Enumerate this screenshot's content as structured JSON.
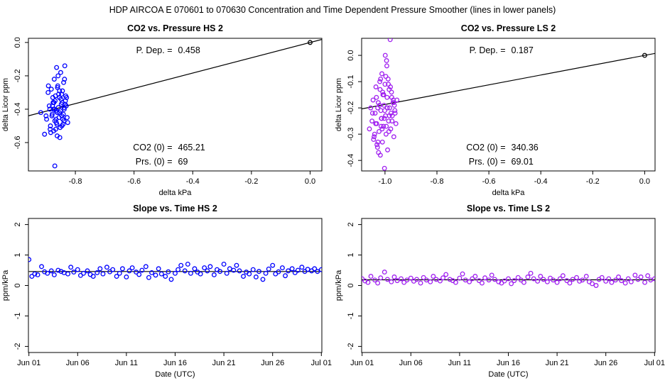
{
  "suptitle": "HDP   AIRCOA E   070601 to 070630   Concentration and Time Dependent Pressure Smoother (lines in lower panels)",
  "colors": {
    "hs": "#0000ff",
    "ls": "#a020f0",
    "line": "#000000"
  },
  "chart_data": [
    {
      "id": "co2-pressure-hs",
      "type": "scatter",
      "title": "CO2 vs. Pressure HS 2",
      "xlabel": "delta kPa",
      "ylabel": "delta Licor ppm",
      "xlim": [
        -0.96,
        0.04
      ],
      "ylim": [
        -0.77,
        0.025
      ],
      "xticks": [
        -0.8,
        -0.6,
        -0.4,
        -0.2,
        0.0
      ],
      "xtick_labels": [
        "-0.8",
        "-0.6",
        "-0.4",
        "-0.2",
        "0.0"
      ],
      "yticks": [
        0.0,
        -0.2,
        -0.4,
        -0.6
      ],
      "ytick_labels": [
        "0.0",
        "-0.2",
        "-0.4",
        "-0.6"
      ],
      "fit_slope": 0.458,
      "annotations": {
        "p_dep_label": "P. Dep. =",
        "p_dep_value": "0.458",
        "co2_label": "CO2 (0) =",
        "co2_value": "465.21",
        "prs_label": "Prs. (0) =",
        "prs_value": "69"
      },
      "series_color_key": "hs",
      "zero_point": [
        0,
        0
      ],
      "x": [
        -0.918,
        -0.905,
        -0.898,
        -0.893,
        -0.889,
        -0.885,
        -0.882,
        -0.879,
        -0.876,
        -0.874,
        -0.872,
        -0.87,
        -0.868,
        -0.866,
        -0.864,
        -0.862,
        -0.86,
        -0.858,
        -0.856,
        -0.854,
        -0.852,
        -0.85,
        -0.848,
        -0.846,
        -0.844,
        -0.842,
        -0.84,
        -0.838,
        -0.836,
        -0.834,
        -0.892,
        -0.884,
        -0.877,
        -0.871,
        -0.865,
        -0.859,
        -0.853,
        -0.847,
        -0.841,
        -0.835,
        -0.88,
        -0.873,
        -0.867,
        -0.861,
        -0.855,
        -0.849,
        -0.843,
        -0.837,
        -0.831,
        -0.826,
        -0.9,
        -0.887,
        -0.869,
        -0.863,
        -0.857,
        -0.851,
        -0.845,
        -0.839,
        -0.833,
        -0.828,
        -0.886,
        -0.878,
        -0.87,
        -0.862,
        -0.854,
        -0.846,
        -0.838,
        -0.83,
        -0.875,
        -0.866
      ],
      "y": [
        -0.42,
        -0.55,
        -0.46,
        -0.3,
        -0.38,
        -0.5,
        -0.28,
        -0.43,
        -0.36,
        -0.53,
        -0.22,
        -0.47,
        -0.32,
        -0.41,
        -0.15,
        -0.56,
        -0.26,
        -0.39,
        -0.45,
        -0.33,
        -0.51,
        -0.18,
        -0.37,
        -0.44,
        -0.29,
        -0.49,
        -0.24,
        -0.4,
        -0.14,
        -0.35,
        -0.26,
        -0.54,
        -0.33,
        -0.4,
        -0.48,
        -0.2,
        -0.57,
        -0.31,
        -0.43,
        -0.37,
        -0.44,
        -0.36,
        -0.52,
        -0.27,
        -0.42,
        -0.34,
        -0.46,
        -0.22,
        -0.38,
        -0.48,
        -0.44,
        -0.4,
        -0.35,
        -0.49,
        -0.31,
        -0.41,
        -0.36,
        -0.47,
        -0.32,
        -0.45,
        -0.52,
        -0.38,
        -0.74,
        -0.42,
        -0.29,
        -0.5,
        -0.39,
        -0.33,
        -0.4,
        -0.46
      ]
    },
    {
      "id": "co2-pressure-ls",
      "type": "scatter",
      "title": "CO2 vs. Pressure LS 2",
      "xlabel": "delta kPa",
      "ylabel": "delta Licor ppm",
      "xlim": [
        -1.09,
        0.04
      ],
      "ylim": [
        -0.44,
        0.065
      ],
      "xticks": [
        -1.0,
        -0.8,
        -0.6,
        -0.4,
        -0.2,
        0.0
      ],
      "xtick_labels": [
        "-1.0",
        "-0.8",
        "-0.6",
        "-0.4",
        "-0.2",
        "0.0"
      ],
      "yticks": [
        0.0,
        -0.1,
        -0.2,
        -0.3,
        -0.4
      ],
      "ytick_labels": [
        "0.0",
        "-0.1",
        "-0.2",
        "-0.3",
        "-0.4"
      ],
      "fit_slope": 0.187,
      "annotations": {
        "p_dep_label": "P. Dep. =",
        "p_dep_value": "0.187",
        "co2_label": "CO2 (0) =",
        "co2_value": "340.36",
        "prs_label": "Prs. (0) =",
        "prs_value": "69.01"
      },
      "series_color_key": "ls",
      "zero_point": [
        0,
        0
      ],
      "x": [
        -1.06,
        -1.055,
        -1.05,
        -1.046,
        -1.042,
        -1.038,
        -1.035,
        -1.032,
        -1.029,
        -1.026,
        -1.023,
        -1.02,
        -1.018,
        -1.016,
        -1.014,
        -1.012,
        -1.01,
        -1.008,
        -1.006,
        -1.004,
        -1.002,
        -1.0,
        -0.998,
        -0.996,
        -0.994,
        -0.992,
        -0.99,
        -0.988,
        -0.986,
        -0.984,
        -0.982,
        -0.98,
        -0.978,
        -0.975,
        -0.972,
        -0.969,
        -0.966,
        -0.962,
        -0.958,
        -0.954,
        -1.048,
        -1.04,
        -1.033,
        -1.027,
        -1.021,
        -1.015,
        -1.009,
        -1.003,
        -0.997,
        -0.991,
        -0.985,
        -0.979,
        -0.973,
        -0.967,
        -0.961,
        -1.044,
        -1.036,
        -1.028,
        -1.019,
        -1.011,
        -1.001,
        -0.993,
        -0.983,
        -0.974,
        -0.964,
        -1.025,
        -1.013,
        -1.005,
        -0.995,
        -0.987,
        -0.977,
        -0.968,
        -1.031,
        -1.017,
        -0.999
      ],
      "y": [
        -0.28,
        -0.2,
        -0.25,
        -0.17,
        -0.31,
        -0.22,
        -0.12,
        -0.26,
        -0.35,
        -0.18,
        -0.29,
        -0.1,
        -0.38,
        -0.21,
        -0.24,
        -0.07,
        -0.33,
        -0.15,
        -0.27,
        -0.19,
        -0.43,
        -0.11,
        -0.23,
        -0.3,
        -0.02,
        -0.16,
        -0.36,
        -0.09,
        -0.25,
        -0.13,
        -0.2,
        0.06,
        -0.28,
        -0.14,
        -0.23,
        -0.18,
        -0.31,
        -0.21,
        -0.26,
        -0.17,
        -0.22,
        -0.3,
        -0.16,
        -0.33,
        -0.19,
        -0.27,
        -0.14,
        -0.24,
        -0.08,
        -0.2,
        -0.29,
        -0.12,
        -0.25,
        -0.18,
        -0.22,
        -0.32,
        -0.26,
        -0.2,
        -0.13,
        -0.28,
        -0.21,
        -0.04,
        -0.23,
        -0.16,
        -0.19,
        -0.37,
        -0.24,
        -0.15,
        -0.27,
        -0.11,
        -0.22,
        -0.17,
        -0.34,
        -0.09,
        0.0
      ]
    },
    {
      "id": "slope-time-hs",
      "type": "line",
      "title": "Slope vs. Time HS 2",
      "xlabel": "Date (UTC)",
      "ylabel": "ppm/kPa",
      "xlim": [
        -0.05,
        30.05
      ],
      "ylim": [
        -2.2,
        2.2
      ],
      "xticks": [
        0,
        5,
        10,
        15,
        20,
        25,
        30
      ],
      "xtick_labels": [
        "Jun 01",
        "Jun 06",
        "Jun 11",
        "Jun 16",
        "Jun 21",
        "Jun 26",
        "Jul 01"
      ],
      "yticks": [
        -2,
        -1,
        0,
        1,
        2
      ],
      "ytick_labels": [
        "-2",
        "-1",
        "0",
        "1",
        "2"
      ],
      "fit_level": 0.458,
      "series_color_key": "hs",
      "x": [
        0,
        0.3,
        0.6,
        0.9,
        1.3,
        1.6,
        1.9,
        2.3,
        2.6,
        3.0,
        3.3,
        3.6,
        4.0,
        4.3,
        4.6,
        5.0,
        5.3,
        5.6,
        6.0,
        6.3,
        6.6,
        7.0,
        7.3,
        7.6,
        8.0,
        8.3,
        8.6,
        9.0,
        9.3,
        9.6,
        10.0,
        10.3,
        10.6,
        11.0,
        11.3,
        11.6,
        12.0,
        12.3,
        12.6,
        13.0,
        13.3,
        13.6,
        14.0,
        14.3,
        14.6,
        15.0,
        15.3,
        15.6,
        16.0,
        16.3,
        16.6,
        17.0,
        17.3,
        17.6,
        18.0,
        18.3,
        18.6,
        19.0,
        19.3,
        19.6,
        20.0,
        20.3,
        20.6,
        21.0,
        21.3,
        21.6,
        22.0,
        22.3,
        22.6,
        23.0,
        23.3,
        23.6,
        24.0,
        24.3,
        24.6,
        25.0,
        25.3,
        25.6,
        26.0,
        26.3,
        26.6,
        27.0,
        27.3,
        27.6,
        28.0,
        28.3,
        28.6,
        29.0,
        29.3,
        29.6,
        30.0
      ],
      "y": [
        0.85,
        0.3,
        0.38,
        0.35,
        0.62,
        0.45,
        0.4,
        0.48,
        0.35,
        0.5,
        0.46,
        0.42,
        0.38,
        0.6,
        0.44,
        0.52,
        0.33,
        0.4,
        0.48,
        0.36,
        0.3,
        0.42,
        0.55,
        0.38,
        0.6,
        0.45,
        0.52,
        0.3,
        0.4,
        0.55,
        0.28,
        0.48,
        0.58,
        0.44,
        0.36,
        0.5,
        0.62,
        0.26,
        0.42,
        0.34,
        0.55,
        0.38,
        0.3,
        0.45,
        0.2,
        0.4,
        0.52,
        0.66,
        0.48,
        0.7,
        0.4,
        0.55,
        0.44,
        0.38,
        0.58,
        0.48,
        0.62,
        0.35,
        0.52,
        0.46,
        0.7,
        0.4,
        0.55,
        0.5,
        0.66,
        0.48,
        0.3,
        0.44,
        0.38,
        0.52,
        0.28,
        0.46,
        0.2,
        0.4,
        0.54,
        0.66,
        0.38,
        0.45,
        0.58,
        0.32,
        0.48,
        0.55,
        0.42,
        0.5,
        0.6,
        0.46,
        0.53,
        0.48,
        0.55,
        0.46,
        0.52
      ]
    },
    {
      "id": "slope-time-ls",
      "type": "line",
      "title": "Slope vs. Time LS 2",
      "xlabel": "Date (UTC)",
      "ylabel": "ppm/kPa",
      "xlim": [
        -0.05,
        30.05
      ],
      "ylim": [
        -2.2,
        2.2
      ],
      "xticks": [
        0,
        5,
        10,
        15,
        20,
        25,
        30
      ],
      "xtick_labels": [
        "Jun 01",
        "Jun 06",
        "Jun 11",
        "Jun 16",
        "Jun 21",
        "Jun 26",
        "Jul 01"
      ],
      "yticks": [
        -2,
        -1,
        0,
        1,
        2
      ],
      "ytick_labels": [
        "-2",
        "-1",
        "0",
        "1",
        "2"
      ],
      "fit_level": 0.187,
      "series_color_key": "ls",
      "x": [
        0,
        0.3,
        0.6,
        0.9,
        1.3,
        1.6,
        1.9,
        2.3,
        2.6,
        3.0,
        3.3,
        3.6,
        4.0,
        4.3,
        4.6,
        5.0,
        5.3,
        5.6,
        6.0,
        6.3,
        6.6,
        7.0,
        7.3,
        7.6,
        8.0,
        8.3,
        8.6,
        9.0,
        9.3,
        9.6,
        10.0,
        10.3,
        10.6,
        11.0,
        11.3,
        11.6,
        12.0,
        12.3,
        12.6,
        13.0,
        13.3,
        13.6,
        14.0,
        14.3,
        14.6,
        15.0,
        15.3,
        15.6,
        16.0,
        16.3,
        16.6,
        17.0,
        17.3,
        17.6,
        18.0,
        18.3,
        18.6,
        19.0,
        19.3,
        19.6,
        20.0,
        20.3,
        20.6,
        21.0,
        21.3,
        21.6,
        22.0,
        22.3,
        22.6,
        23.0,
        23.3,
        23.6,
        24.0,
        24.3,
        24.6,
        25.0,
        25.3,
        25.6,
        26.0,
        26.3,
        26.6,
        27.0,
        27.3,
        27.6,
        28.0,
        28.3,
        28.6,
        29.0,
        29.3,
        29.6,
        30.0
      ],
      "y": [
        0.22,
        0.15,
        0.1,
        0.3,
        0.18,
        0.08,
        0.25,
        0.44,
        0.2,
        0.12,
        0.28,
        0.16,
        0.22,
        0.1,
        0.18,
        0.24,
        0.14,
        0.2,
        0.08,
        0.26,
        0.18,
        0.12,
        0.3,
        0.2,
        0.15,
        0.25,
        0.36,
        0.2,
        0.16,
        0.1,
        0.24,
        0.38,
        0.18,
        0.12,
        0.22,
        0.3,
        0.16,
        0.08,
        0.25,
        0.18,
        0.34,
        0.2,
        0.12,
        0.08,
        0.15,
        0.22,
        0.06,
        0.16,
        0.26,
        0.18,
        0.1,
        0.28,
        0.4,
        0.22,
        0.14,
        0.3,
        0.2,
        0.12,
        0.24,
        0.18,
        0.1,
        0.22,
        0.32,
        0.16,
        0.08,
        0.2,
        0.26,
        0.14,
        0.18,
        0.3,
        0.12,
        0.06,
        0.0,
        0.2,
        0.26,
        0.14,
        0.22,
        0.1,
        0.18,
        0.28,
        0.16,
        0.08,
        0.22,
        0.12,
        0.34,
        0.2,
        0.28,
        0.1,
        0.32,
        0.18,
        0.22
      ]
    }
  ]
}
